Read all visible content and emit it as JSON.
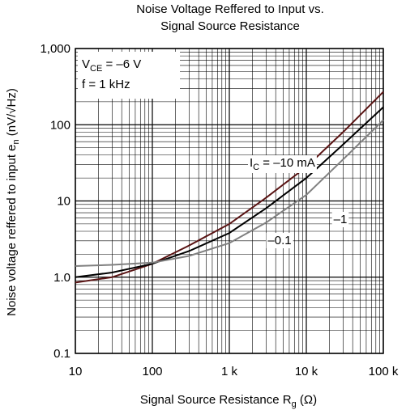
{
  "chart_data": {
    "type": "line",
    "title": [
      "Noise Voltage Reffered to Input vs.",
      "Signal Source Resistance"
    ],
    "x_label": [
      "Signal Source Resistance  R",
      "g",
      "  (Ω)"
    ],
    "y_label": [
      "Noise voltage reffered to input  e",
      "n",
      "  (nV/√Hz)"
    ],
    "x_scale": "log",
    "y_scale": "log",
    "grid": true,
    "minor_grid": true,
    "xlim": [
      10,
      100000
    ],
    "ylim": [
      0.1,
      1000
    ],
    "xticks": [
      10,
      100,
      {
        "value": 1000,
        "label": "1 k"
      },
      {
        "value": 10000,
        "label": "10 k"
      },
      {
        "value": 100000,
        "label": "100 k"
      }
    ],
    "yticks": [
      0.1,
      {
        "value": 1,
        "label": "1.0"
      },
      10,
      100,
      {
        "value": 1000,
        "label": "1,000"
      }
    ],
    "conditions": [
      [
        "V",
        "CE",
        " = –6 V"
      ],
      [
        "f = 1 kHz"
      ]
    ],
    "x": [
      10,
      30,
      100,
      300,
      1000,
      3000,
      10000,
      30000,
      100000
    ],
    "series": [
      {
        "label": [
          "I",
          "C",
          " = –10 mA"
        ],
        "color": "#5a1414",
        "values": [
          0.85,
          1.0,
          1.5,
          2.6,
          5,
          11,
          28,
          80,
          270
        ]
      },
      {
        "label": [
          "–1"
        ],
        "color": "#000000",
        "values": [
          1.0,
          1.15,
          1.5,
          2.2,
          3.8,
          8,
          20,
          55,
          170
        ]
      },
      {
        "label": [
          "–0.1"
        ],
        "color": "#808080",
        "values": [
          1.4,
          1.45,
          1.55,
          1.9,
          2.8,
          5.2,
          12,
          35,
          115
        ]
      }
    ]
  }
}
